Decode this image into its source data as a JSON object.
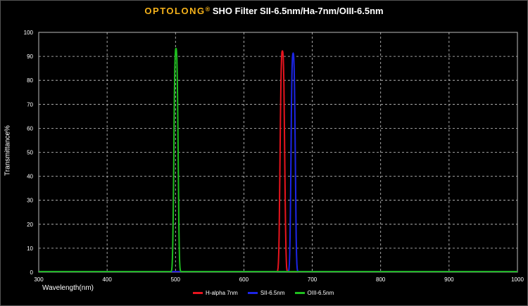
{
  "header": {
    "brand": "OPTOLONG",
    "reg": "®",
    "title": "SHO Filter SII-6.5nm/Ha-7nm/OIII-6.5nm"
  },
  "chart_data": {
    "type": "line",
    "xlabel": "Wavelength(nm)",
    "ylabel": "Transmittance%",
    "xlim": [
      300,
      1000
    ],
    "ylim": [
      0,
      100
    ],
    "xticks": [
      300,
      400,
      500,
      600,
      700,
      800,
      900,
      1000
    ],
    "yticks": [
      0,
      10,
      20,
      30,
      40,
      50,
      60,
      70,
      80,
      90,
      100
    ],
    "grid": true,
    "legend_position": "bottom-center",
    "series": [
      {
        "name": "H-alpha 7nm",
        "color": "#e8141e",
        "center": 656.3,
        "fwhm": 7,
        "peak": 92
      },
      {
        "name": "SII-6.5nm",
        "color": "#1c25e6",
        "center": 672,
        "fwhm": 6.5,
        "peak": 91
      },
      {
        "name": "OIII-6.5nm",
        "color": "#1fbf1f",
        "center": 500.7,
        "fwhm": 6.5,
        "peak": 93
      }
    ]
  }
}
